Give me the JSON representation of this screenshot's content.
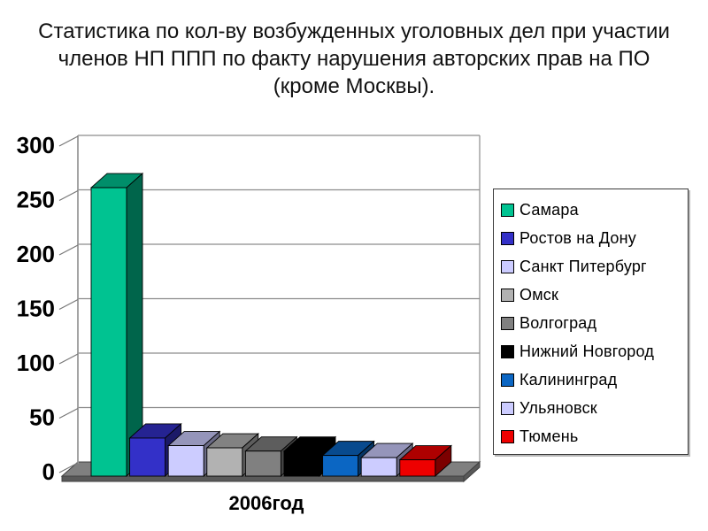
{
  "title": {
    "lines": [
      "Статистика по кол-ву возбужденных уголовных дел при участии",
      "членов НП ППП по факту нарушения авторских прав на ПО",
      "(кроме Москвы)."
    ]
  },
  "chart_data": {
    "type": "bar",
    "projection": "3d",
    "title": "Статистика по кол-ву возбужденных уголовных дел при участии членов НП ППП по факту нарушения авторских прав на ПО (кроме Москвы).",
    "xlabel": "2006год",
    "ylabel": "",
    "ylim": [
      0,
      300
    ],
    "yticks": [
      0,
      50,
      100,
      150,
      200,
      250,
      300
    ],
    "grid": true,
    "legend_position": "right",
    "categories": [
      "2006год"
    ],
    "series": [
      {
        "name": "Самара",
        "value": 265,
        "color": "#00c391"
      },
      {
        "name": "Ростов на Дону",
        "value": 35,
        "color": "#3330c8"
      },
      {
        "name": "Санкт Питербург",
        "value": 28,
        "color": "#ccccff"
      },
      {
        "name": "Омск",
        "value": 26,
        "color": "#b2b2b2"
      },
      {
        "name": "Волгоград",
        "value": 23,
        "color": "#808080"
      },
      {
        "name": "Нижний Новгород",
        "value": 23,
        "color": "#000000"
      },
      {
        "name": "Калининград",
        "value": 19,
        "color": "#0b66c3"
      },
      {
        "name": "Ульяновск",
        "value": 17,
        "color": "#ccccff"
      },
      {
        "name": "Тюмень",
        "value": 15,
        "color": "#ee0000"
      }
    ],
    "colors": {
      "gridline": "#8c8c8c",
      "axis": "#9a9a9a",
      "floor_top": "#808080",
      "floor_front": "#595959",
      "wall": "#ffffff",
      "text": "#000000"
    }
  }
}
